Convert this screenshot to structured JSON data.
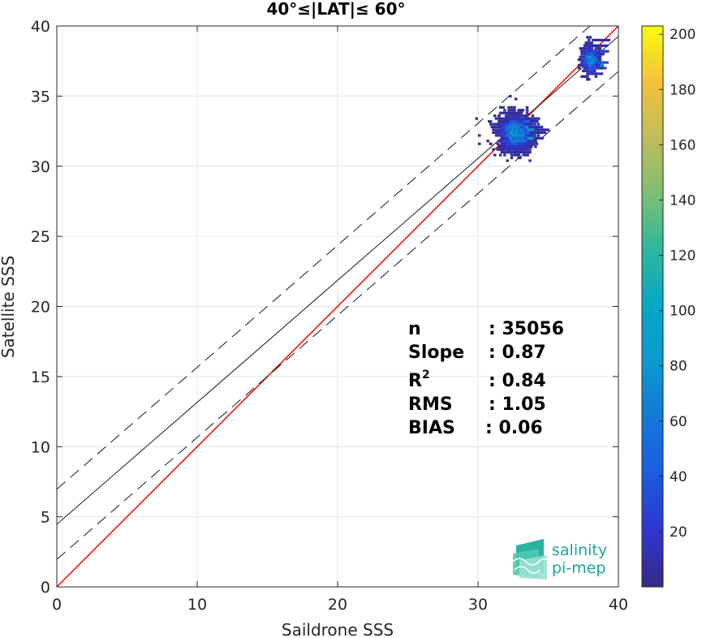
{
  "chart_data": {
    "type": "heatmap",
    "title": "40°≤|LAT|≤ 60°",
    "xlabel": "Saildrone SSS",
    "ylabel": "Satellite SSS",
    "xlim": [
      0,
      40
    ],
    "ylim": [
      0,
      40
    ],
    "xticks": [
      0,
      10,
      20,
      30,
      40
    ],
    "yticks": [
      0,
      5,
      10,
      15,
      20,
      25,
      30,
      35,
      40
    ],
    "grid": true,
    "colorbar": {
      "range": [
        0,
        203
      ],
      "ticks": [
        20,
        40,
        60,
        80,
        100,
        120,
        140,
        160,
        180,
        200
      ],
      "colormap": "parula"
    },
    "lines": [
      {
        "name": "1:1 line",
        "slope": 1.0,
        "intercept": 0.0,
        "color": "#ff0000",
        "style": "solid"
      },
      {
        "name": "regression fit",
        "slope": 0.87,
        "intercept": 4.46,
        "color": "#000000",
        "style": "solid"
      },
      {
        "name": "fit + 2.5 bound",
        "slope": 0.87,
        "intercept": 6.96,
        "color": "#000000",
        "style": "dashed"
      },
      {
        "name": "fit - 2.5 bound",
        "slope": 0.87,
        "intercept": 1.96,
        "color": "#000000",
        "style": "dashed"
      }
    ],
    "clusters": [
      {
        "x_center": 32.5,
        "y_center": 32.4,
        "x_spread": 1.2,
        "y_spread": 1.3,
        "peak_count": 110
      },
      {
        "x_center": 37.9,
        "y_center": 37.6,
        "x_spread": 0.6,
        "y_spread": 1.0,
        "peak_count": 120
      }
    ],
    "stats": [
      {
        "label": "n",
        "value": ": 35056"
      },
      {
        "label": "Slope",
        "value": ": 0.87"
      },
      {
        "label": "R",
        "sup": "2",
        "value": ": 0.84"
      },
      {
        "label": "RMS",
        "value": ": 1.05"
      },
      {
        "label": "BIAS",
        "value": ": 0.06"
      }
    ]
  },
  "logo": {
    "line1": "salinity",
    "line2": "pi-mep"
  },
  "colors": {
    "fit_line": "#000000",
    "identity_line": "#ff0000",
    "grid": "#e6e6e6",
    "logo_accent": "#1aa59a"
  }
}
